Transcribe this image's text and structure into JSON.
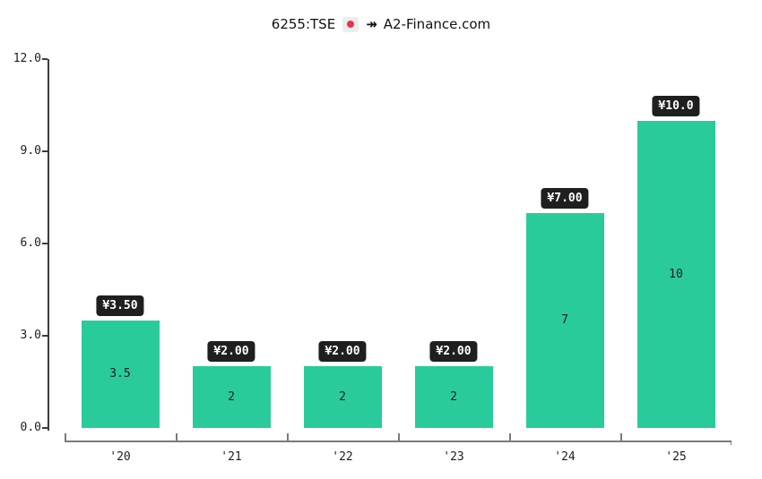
{
  "title": {
    "ticker": "6255:TSE",
    "flag_icon": "japan-flag",
    "arrow_glyph": "↠",
    "site": "A2-Finance.com"
  },
  "colors": {
    "bar": "#2acb9b",
    "callout_bg": "#1f1f1f",
    "callout_text": "#ffffff",
    "flag_bg": "#ededed",
    "flag_red": "#e8334a"
  },
  "chart_data": {
    "type": "bar",
    "title": "6255:TSE ↠ A2-Finance.com",
    "categories": [
      "'20",
      "'21",
      "'22",
      "'23",
      "'24",
      "'25"
    ],
    "values": [
      3.5,
      2,
      2,
      2,
      7,
      10
    ],
    "bar_value_labels": [
      "3.5",
      "2",
      "2",
      "2",
      "7",
      "10"
    ],
    "callout_labels": [
      "¥3.50",
      "¥2.00",
      "¥2.00",
      "¥2.00",
      "¥7.00",
      "¥10.0"
    ],
    "xlabel": "",
    "ylabel": "",
    "ylim": [
      0,
      12
    ],
    "yticks": [
      0.0,
      3.0,
      6.0,
      9.0,
      12.0
    ],
    "ytick_labels": [
      "0.0",
      "3.0",
      "6.0",
      "9.0",
      "12.0"
    ],
    "grid": false,
    "legend": false
  }
}
